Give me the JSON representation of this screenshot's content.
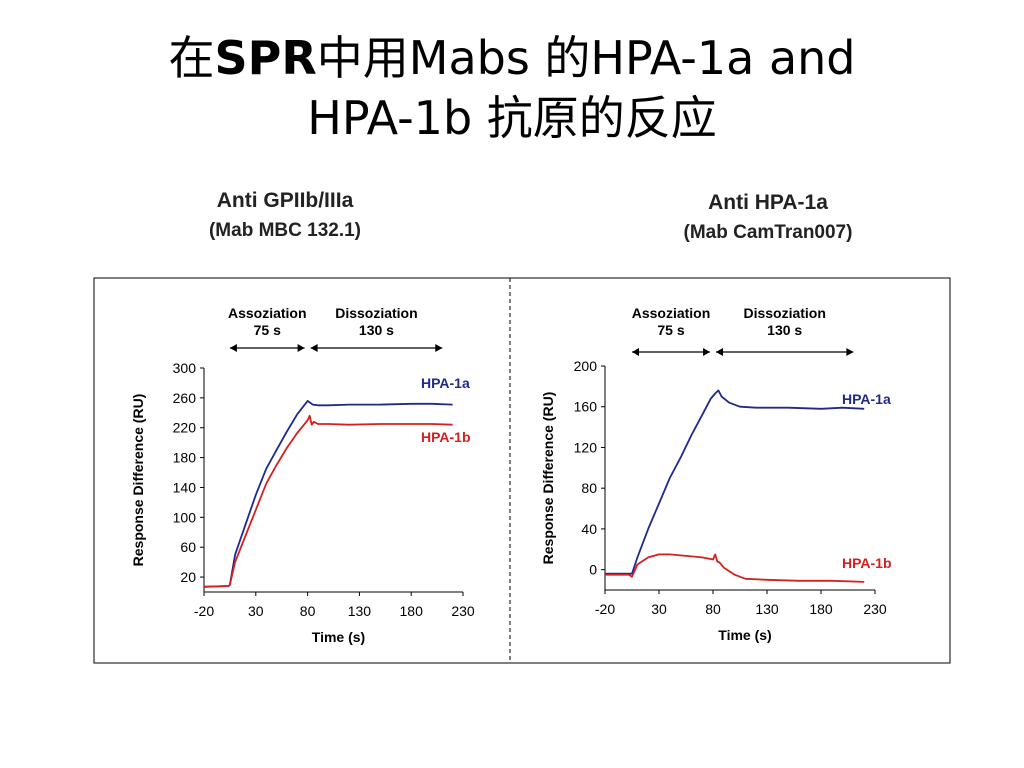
{
  "slide": {
    "title_line1_a": "在",
    "title_line1_b": "SPR",
    "title_line1_c": "中用Mabs 的HPA-1a and",
    "title_line2": "HPA-1b 抗原的反应"
  },
  "chart_data": [
    {
      "type": "line",
      "title": "Anti GPIIb/IIIa",
      "subtitle": "(Mab MBC 132.1)",
      "xlabel": "Time (s)",
      "ylabel": "Response Difference (RU)",
      "xlim": [
        -20,
        230
      ],
      "ylim": [
        0,
        300
      ],
      "x_ticks": [
        "-20",
        "30",
        "80",
        "130",
        "180",
        "230"
      ],
      "y_ticks": [
        "20",
        "60",
        "100",
        "140",
        "180",
        "220",
        "260",
        "300"
      ],
      "phase_association": {
        "label": "Assoziation",
        "duration": "75 s",
        "start": 5,
        "end": 80
      },
      "phase_dissociation": {
        "label": "Dissoziation",
        "duration": "130 s",
        "start": 80,
        "end": 210
      },
      "grid": false,
      "legend": "inline-right",
      "series": [
        {
          "name": "HPA-1a",
          "color": "#1f2a8c",
          "x": [
            -20,
            4,
            5,
            10,
            20,
            30,
            40,
            50,
            60,
            70,
            80,
            85,
            90,
            100,
            120,
            150,
            180,
            200,
            220
          ],
          "y": [
            7,
            8,
            10,
            50,
            90,
            130,
            165,
            190,
            215,
            238,
            256,
            251,
            250,
            250,
            251,
            251,
            252,
            252,
            251
          ]
        },
        {
          "name": "HPA-1b",
          "color": "#d42020",
          "x": [
            -20,
            4,
            5,
            10,
            20,
            30,
            40,
            50,
            60,
            70,
            80,
            82,
            84,
            86,
            90,
            100,
            120,
            150,
            180,
            200,
            220
          ],
          "y": [
            7,
            8,
            10,
            40,
            75,
            110,
            145,
            170,
            193,
            213,
            230,
            236,
            224,
            228,
            225,
            225,
            224,
            225,
            225,
            225,
            224
          ]
        }
      ]
    },
    {
      "type": "line",
      "title": "Anti HPA-1a",
      "subtitle": "(Mab CamTran007)",
      "xlabel": "Time (s)",
      "ylabel": "Response Difference (RU)",
      "xlim": [
        -20,
        230
      ],
      "ylim": [
        -20,
        200
      ],
      "x_ticks": [
        "-20",
        "30",
        "80",
        "130",
        "180",
        "230"
      ],
      "y_ticks": [
        "0",
        "40",
        "80",
        "120",
        "160",
        "200"
      ],
      "phase_association": {
        "label": "Assoziation",
        "duration": "75 s",
        "start": 5,
        "end": 80
      },
      "phase_dissociation": {
        "label": "Dissoziation",
        "duration": "130 s",
        "start": 80,
        "end": 210
      },
      "grid": false,
      "legend": "inline-right",
      "series": [
        {
          "name": "HPA-1a",
          "color": "#1f2a8c",
          "x": [
            -20,
            5,
            10,
            20,
            30,
            40,
            50,
            60,
            70,
            78,
            82,
            85,
            88,
            95,
            105,
            120,
            150,
            180,
            200,
            220
          ],
          "y": [
            -4,
            -4,
            12,
            40,
            65,
            90,
            110,
            132,
            152,
            168,
            173,
            176,
            170,
            164,
            160,
            159,
            159,
            158,
            159,
            158
          ]
        },
        {
          "name": "HPA-1b",
          "color": "#d42020",
          "x": [
            -20,
            -5,
            2,
            5,
            10,
            20,
            30,
            40,
            50,
            60,
            70,
            80,
            82,
            84,
            86,
            90,
            100,
            110,
            130,
            160,
            190,
            220
          ],
          "y": [
            -5,
            -5,
            -5,
            -7,
            5,
            12,
            15,
            15,
            14,
            13,
            12,
            10,
            15,
            8,
            7,
            2,
            -5,
            -9,
            -10,
            -11,
            -11,
            -12
          ]
        }
      ]
    }
  ]
}
